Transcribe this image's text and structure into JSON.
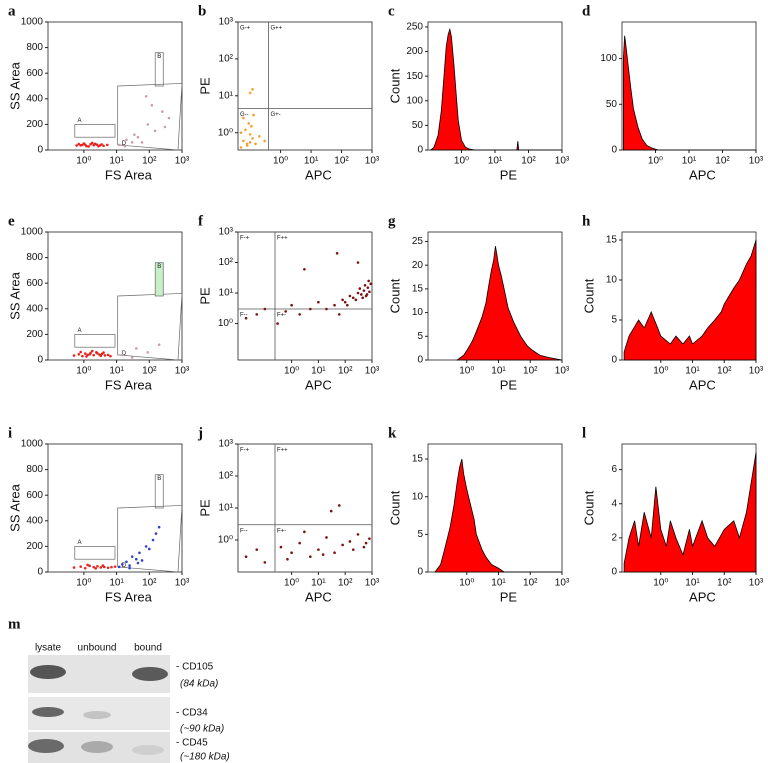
{
  "chart_data": [
    {
      "panel": "a",
      "type": "scatter",
      "ylabel": "SS Area",
      "xlabel": "FS Area",
      "xlog": true,
      "xlim": [
        0.08,
        1000
      ],
      "ylim": [
        0,
        1000
      ],
      "xticks": [
        {
          "value": 1,
          "label": "10⁰"
        },
        {
          "value": 10,
          "label": "10¹"
        },
        {
          "value": 100,
          "label": "10²"
        },
        {
          "value": 1000,
          "label": "10³"
        }
      ],
      "yticks": [
        0,
        200,
        400,
        600,
        800,
        1000
      ],
      "gates": [
        "A",
        "B",
        "D"
      ],
      "clusters": [
        {
          "color": "#e8231e",
          "x": [
            0.6,
            0.9,
            1.2,
            1.6,
            2.0,
            2.5,
            3.1,
            4.0,
            5.2,
            1.0,
            1.4,
            2.2,
            3.5,
            0.8,
            1.8,
            2.8,
            1.1,
            0.7
          ],
          "y": [
            35,
            40,
            30,
            45,
            38,
            42,
            36,
            33,
            40,
            50,
            28,
            48,
            44,
            37,
            55,
            30,
            42,
            46
          ]
        },
        {
          "color": "#c9a0aa",
          "x": [
            12,
            20,
            35,
            60,
            90,
            150,
            250,
            400,
            18,
            45,
            120,
            300,
            80,
            30
          ],
          "y": [
            40,
            80,
            120,
            60,
            200,
            150,
            300,
            250,
            30,
            100,
            350,
            180,
            420,
            60
          ]
        }
      ]
    },
    {
      "panel": "b",
      "type": "scatter",
      "ylabel": "PE",
      "xlabel": "APC",
      "xlog": true,
      "ylog": true,
      "xlim": [
        0.04,
        1000
      ],
      "ylim": [
        0.34,
        1000
      ],
      "xticks": [
        {
          "value": 1,
          "label": "10⁰"
        },
        {
          "value": 10,
          "label": "10¹"
        },
        {
          "value": 100,
          "label": "10²"
        },
        {
          "value": 1000,
          "label": "10³"
        }
      ],
      "yticks": [
        {
          "value": 1,
          "label": "10⁰"
        },
        {
          "value": 10,
          "label": "10¹"
        },
        {
          "value": 100,
          "label": "10²"
        },
        {
          "value": 1000,
          "label": "10³"
        }
      ],
      "quadrants": [
        "G-+",
        "G++",
        "G--",
        "G+-"
      ],
      "gate_x": 0.4,
      "gate_y": 4.5,
      "clusters": [
        {
          "color": "#f5a030",
          "x": [
            0.05,
            0.06,
            0.08,
            0.1,
            0.12,
            0.07,
            0.09,
            0.15,
            0.2,
            0.06,
            0.11,
            0.08,
            0.3,
            0.05,
            0.13,
            0.1,
            0.1,
            0.12
          ],
          "y": [
            0.4,
            0.6,
            0.5,
            0.9,
            0.7,
            1.2,
            1.8,
            0.5,
            0.8,
            2.5,
            1.5,
            0.45,
            0.6,
            1.0,
            3.0,
            0.55,
            12,
            15
          ]
        }
      ]
    },
    {
      "panel": "c",
      "type": "area",
      "ylabel": "Count",
      "xlabel": "PE",
      "xlog": true,
      "xlim": [
        0.1,
        1000
      ],
      "ylim": [
        0,
        260
      ],
      "color": "#ff0000",
      "xticks": [
        {
          "value": 1,
          "label": "10⁰"
        },
        {
          "value": 10,
          "label": "10¹"
        },
        {
          "value": 100,
          "label": "10²"
        },
        {
          "value": 1000,
          "label": "10³"
        }
      ],
      "yticks": [
        0,
        50,
        100,
        150,
        200,
        250
      ],
      "x": [
        0.12,
        0.15,
        0.2,
        0.25,
        0.3,
        0.35,
        0.4,
        0.45,
        0.5,
        0.6,
        0.7,
        0.8,
        1.0,
        1.3,
        1.7,
        2.5,
        45,
        48,
        51,
        1000
      ],
      "values": [
        0,
        5,
        30,
        80,
        150,
        210,
        235,
        245,
        230,
        170,
        110,
        60,
        20,
        6,
        2,
        0,
        0,
        18,
        0,
        0
      ]
    },
    {
      "panel": "d",
      "type": "area",
      "xlabel": "APC",
      "xlog": true,
      "xlim": [
        0.1,
        1000
      ],
      "ylim": [
        0,
        140
      ],
      "color": "#ff0000",
      "xticks": [
        {
          "value": 1,
          "label": "10⁰"
        },
        {
          "value": 10,
          "label": "10¹"
        },
        {
          "value": 100,
          "label": "10²"
        },
        {
          "value": 1000,
          "label": "10³"
        }
      ],
      "yticks": [
        0,
        50,
        100
      ],
      "x": [
        0.11,
        0.12,
        0.13,
        0.15,
        0.18,
        0.22,
        0.3,
        0.4,
        0.55,
        0.8,
        1.2,
        1000
      ],
      "values": [
        100,
        125,
        115,
        95,
        70,
        45,
        25,
        12,
        5,
        2,
        0,
        0
      ]
    },
    {
      "panel": "e",
      "type": "scatter",
      "ylabel": "SS Area",
      "xlabel": "FS Area",
      "xlog": true,
      "xlim": [
        0.08,
        1000
      ],
      "ylim": [
        0,
        1000
      ],
      "xticks": [
        {
          "value": 1,
          "label": "10⁰"
        },
        {
          "value": 10,
          "label": "10¹"
        },
        {
          "value": 100,
          "label": "10²"
        },
        {
          "value": 1000,
          "label": "10³"
        }
      ],
      "yticks": [
        0,
        200,
        400,
        600,
        800,
        1000
      ],
      "gates": [
        "A",
        "B",
        "D"
      ],
      "clusters": [
        {
          "color": "#e8231e",
          "x": [
            0.5,
            0.7,
            0.9,
            1.1,
            1.3,
            1.6,
            2.0,
            2.4,
            3.0,
            3.6,
            4.4,
            5.5,
            6.5,
            0.8,
            1.2,
            1.8,
            2.6,
            3.3,
            4.0,
            1.5
          ],
          "y": [
            35,
            45,
            30,
            50,
            40,
            55,
            38,
            60,
            42,
            48,
            36,
            40,
            30,
            62,
            28,
            70,
            52,
            33,
            58,
            44
          ]
        },
        {
          "color": "#c9a0aa",
          "x": [
            15,
            40,
            90,
            200,
            30
          ],
          "y": [
            40,
            90,
            60,
            120,
            20
          ]
        }
      ]
    },
    {
      "panel": "f",
      "type": "scatter",
      "ylabel": "PE",
      "xlabel": "APC",
      "xlog": true,
      "ylog": true,
      "xlim": [
        0.01,
        1000
      ],
      "ylim": [
        0.064,
        1000
      ],
      "xticks": [
        {
          "value": 1,
          "label": "10⁰"
        },
        {
          "value": 10,
          "label": "10¹"
        },
        {
          "value": 100,
          "label": "10²"
        },
        {
          "value": 1000,
          "label": "10³"
        }
      ],
      "yticks": [
        {
          "value": 1,
          "label": "10⁰"
        },
        {
          "value": 10,
          "label": "10¹"
        },
        {
          "value": 100,
          "label": "10²"
        },
        {
          "value": 1000,
          "label": "10³"
        }
      ],
      "quadrants": [
        "F-+",
        "F++",
        "F--",
        "F+-"
      ],
      "gate_x": 0.24,
      "gate_y": 3,
      "clusters": [
        {
          "color": "#7a1010",
          "x": [
            0.02,
            0.05,
            0.1,
            0.3,
            0.6,
            1,
            2,
            5,
            10,
            20,
            40,
            80,
            100,
            150,
            200,
            300,
            400,
            500,
            600,
            700,
            800,
            900,
            250,
            350,
            450,
            550,
            650,
            750,
            120,
            60,
            3,
            50,
            300
          ],
          "y": [
            1.5,
            2,
            3,
            1,
            2.5,
            4,
            2,
            3,
            5,
            3,
            4,
            6,
            5,
            8,
            7,
            10,
            9,
            12,
            8,
            15,
            11,
            20,
            6,
            14,
            7,
            18,
            9,
            25,
            4,
            2,
            60,
            200,
            100
          ]
        }
      ]
    },
    {
      "panel": "g",
      "type": "area",
      "ylabel": "Count",
      "xlabel": "PE",
      "xlog": true,
      "xlim": [
        0.06,
        1000
      ],
      "ylim": [
        0,
        27
      ],
      "color": "#ff0000",
      "xticks": [
        {
          "value": 1,
          "label": "10⁰"
        },
        {
          "value": 10,
          "label": "10¹"
        },
        {
          "value": 100,
          "label": "10²"
        },
        {
          "value": 1000,
          "label": "10³"
        }
      ],
      "yticks": [
        0,
        5,
        10,
        15,
        20,
        25
      ],
      "x": [
        0.5,
        0.8,
        1,
        1.5,
        2,
        3,
        4,
        5,
        6,
        7,
        8,
        9,
        10,
        12,
        15,
        20,
        30,
        50,
        80,
        120,
        200,
        400,
        1000
      ],
      "values": [
        0,
        1,
        2,
        4,
        6,
        9,
        12,
        16,
        19,
        21,
        24,
        22,
        20,
        18,
        15,
        11,
        8,
        5,
        3,
        2,
        1,
        0.5,
        0
      ]
    },
    {
      "panel": "h",
      "type": "area",
      "ylabel": "Count",
      "xlabel": "APC",
      "xlog": true,
      "xlim": [
        0.06,
        1000
      ],
      "ylim": [
        0,
        16
      ],
      "color": "#ff0000",
      "xticks": [
        {
          "value": 1,
          "label": "10⁰"
        },
        {
          "value": 10,
          "label": "10¹"
        },
        {
          "value": 100,
          "label": "10²"
        },
        {
          "value": 1000,
          "label": "10³"
        }
      ],
      "yticks": [
        0,
        5,
        10,
        15
      ],
      "x": [
        0.07,
        0.1,
        0.2,
        0.3,
        0.5,
        0.8,
        1,
        2,
        3,
        5,
        8,
        10,
        20,
        30,
        50,
        80,
        100,
        200,
        300,
        500,
        700,
        1000
      ],
      "values": [
        1,
        3,
        5,
        4,
        6,
        4,
        3,
        2,
        3,
        2,
        3,
        2,
        3,
        4,
        5,
        6,
        7,
        9,
        10,
        12,
        13,
        15
      ]
    },
    {
      "panel": "i",
      "type": "scatter",
      "ylabel": "SS Area",
      "xlabel": "FS Area",
      "xlog": true,
      "xlim": [
        0.08,
        1000
      ],
      "ylim": [
        0,
        1000
      ],
      "xticks": [
        {
          "value": 1,
          "label": "10⁰"
        },
        {
          "value": 10,
          "label": "10¹"
        },
        {
          "value": 100,
          "label": "10²"
        },
        {
          "value": 1000,
          "label": "10³"
        }
      ],
      "yticks": [
        0,
        200,
        400,
        600,
        800,
        1000
      ],
      "gates": [
        "A",
        "B",
        "D"
      ],
      "clusters": [
        {
          "color": "#e8231e",
          "x": [
            0.5,
            0.8,
            1.1,
            1.5,
            2.0,
            2.6,
            3.3,
            4.2,
            5.5,
            7,
            9,
            1.3,
            2.3,
            3.8
          ],
          "y": [
            35,
            42,
            30,
            48,
            38,
            45,
            36,
            40,
            33,
            38,
            42,
            55,
            28,
            50
          ]
        },
        {
          "color": "#3040c8",
          "x": [
            12,
            15,
            20,
            25,
            30,
            40,
            50,
            60,
            80,
            100,
            130,
            160,
            200,
            25,
            45
          ],
          "y": [
            40,
            60,
            80,
            50,
            120,
            100,
            150,
            90,
            200,
            180,
            250,
            300,
            350,
            30,
            70
          ]
        }
      ]
    },
    {
      "panel": "j",
      "type": "scatter",
      "ylabel": "PE",
      "xlabel": "APC",
      "xlog": true,
      "ylog": true,
      "xlim": [
        0.01,
        1000
      ],
      "ylim": [
        0.1,
        1000
      ],
      "xticks": [
        {
          "value": 1,
          "label": "10⁰"
        },
        {
          "value": 10,
          "label": "10¹"
        },
        {
          "value": 100,
          "label": "10²"
        },
        {
          "value": 1000,
          "label": "10³"
        }
      ],
      "yticks": [
        {
          "value": 1,
          "label": "10⁰"
        },
        {
          "value": 10,
          "label": "10¹"
        },
        {
          "value": 100,
          "label": "10²"
        },
        {
          "value": 1000,
          "label": "10³"
        }
      ],
      "quadrants": [
        "F-+",
        "F++",
        "F--",
        "F+-"
      ],
      "gate_x": 0.24,
      "gate_y": 3,
      "clusters": [
        {
          "color": "#7a1010",
          "x": [
            0.02,
            0.05,
            0.1,
            0.4,
            1,
            2,
            5,
            10,
            20,
            40,
            80,
            150,
            300,
            500,
            800,
            0.7,
            3,
            15,
            60,
            200,
            600,
            30
          ],
          "y": [
            0.3,
            0.5,
            0.2,
            0.6,
            0.4,
            0.8,
            0.3,
            0.5,
            1.2,
            0.4,
            0.7,
            0.9,
            1.5,
            0.6,
            1.1,
            0.25,
            1.8,
            0.35,
            12,
            0.5,
            0.8,
            8
          ]
        }
      ]
    },
    {
      "panel": "k",
      "type": "area",
      "ylabel": "Count",
      "xlabel": "PE",
      "xlog": true,
      "xlim": [
        0.06,
        1000
      ],
      "ylim": [
        0,
        17
      ],
      "color": "#ff0000",
      "xticks": [
        {
          "value": 1,
          "label": "10⁰"
        },
        {
          "value": 10,
          "label": "10¹"
        },
        {
          "value": 100,
          "label": "10²"
        },
        {
          "value": 1000,
          "label": "10³"
        }
      ],
      "yticks": [
        0,
        5,
        10,
        15
      ],
      "x": [
        0.1,
        0.15,
        0.2,
        0.3,
        0.4,
        0.5,
        0.6,
        0.7,
        0.8,
        1,
        1.3,
        1.7,
        2,
        3,
        4,
        6,
        10,
        15,
        1000
      ],
      "values": [
        0,
        1,
        3,
        6,
        9,
        12,
        14,
        15,
        13,
        11,
        9,
        7,
        5,
        3,
        2,
        1,
        0.5,
        0,
        0
      ]
    },
    {
      "panel": "l",
      "type": "area",
      "ylabel": "Count",
      "xlabel": "APC",
      "xlog": true,
      "xlim": [
        0.06,
        1000
      ],
      "ylim": [
        0,
        7.5
      ],
      "color": "#ff0000",
      "xticks": [
        {
          "value": 1,
          "label": "10⁰"
        },
        {
          "value": 10,
          "label": "10¹"
        },
        {
          "value": 100,
          "label": "10²"
        },
        {
          "value": 1000,
          "label": "10³"
        }
      ],
      "yticks": [
        0,
        2,
        4,
        6
      ],
      "x": [
        0.07,
        0.1,
        0.15,
        0.2,
        0.3,
        0.5,
        0.7,
        1,
        1.5,
        2,
        3,
        5,
        8,
        10,
        20,
        30,
        50,
        100,
        200,
        300,
        500,
        1000
      ],
      "values": [
        0.5,
        2,
        3,
        1.5,
        3.5,
        2,
        5,
        2.5,
        1.5,
        3,
        2,
        1,
        2.5,
        1.5,
        3,
        2,
        1.5,
        2.5,
        3,
        2,
        3.5,
        7
      ]
    }
  ],
  "blot": {
    "panel": "m",
    "lanes": [
      "lysate",
      "unbound",
      "bound"
    ],
    "bands": [
      {
        "name": "- CD105",
        "size": "(84 kDa)"
      },
      {
        "name": "- CD34",
        "size": "(~90 kDa)"
      },
      {
        "name": "- CD45",
        "size": "(~180 kDa)"
      }
    ]
  }
}
